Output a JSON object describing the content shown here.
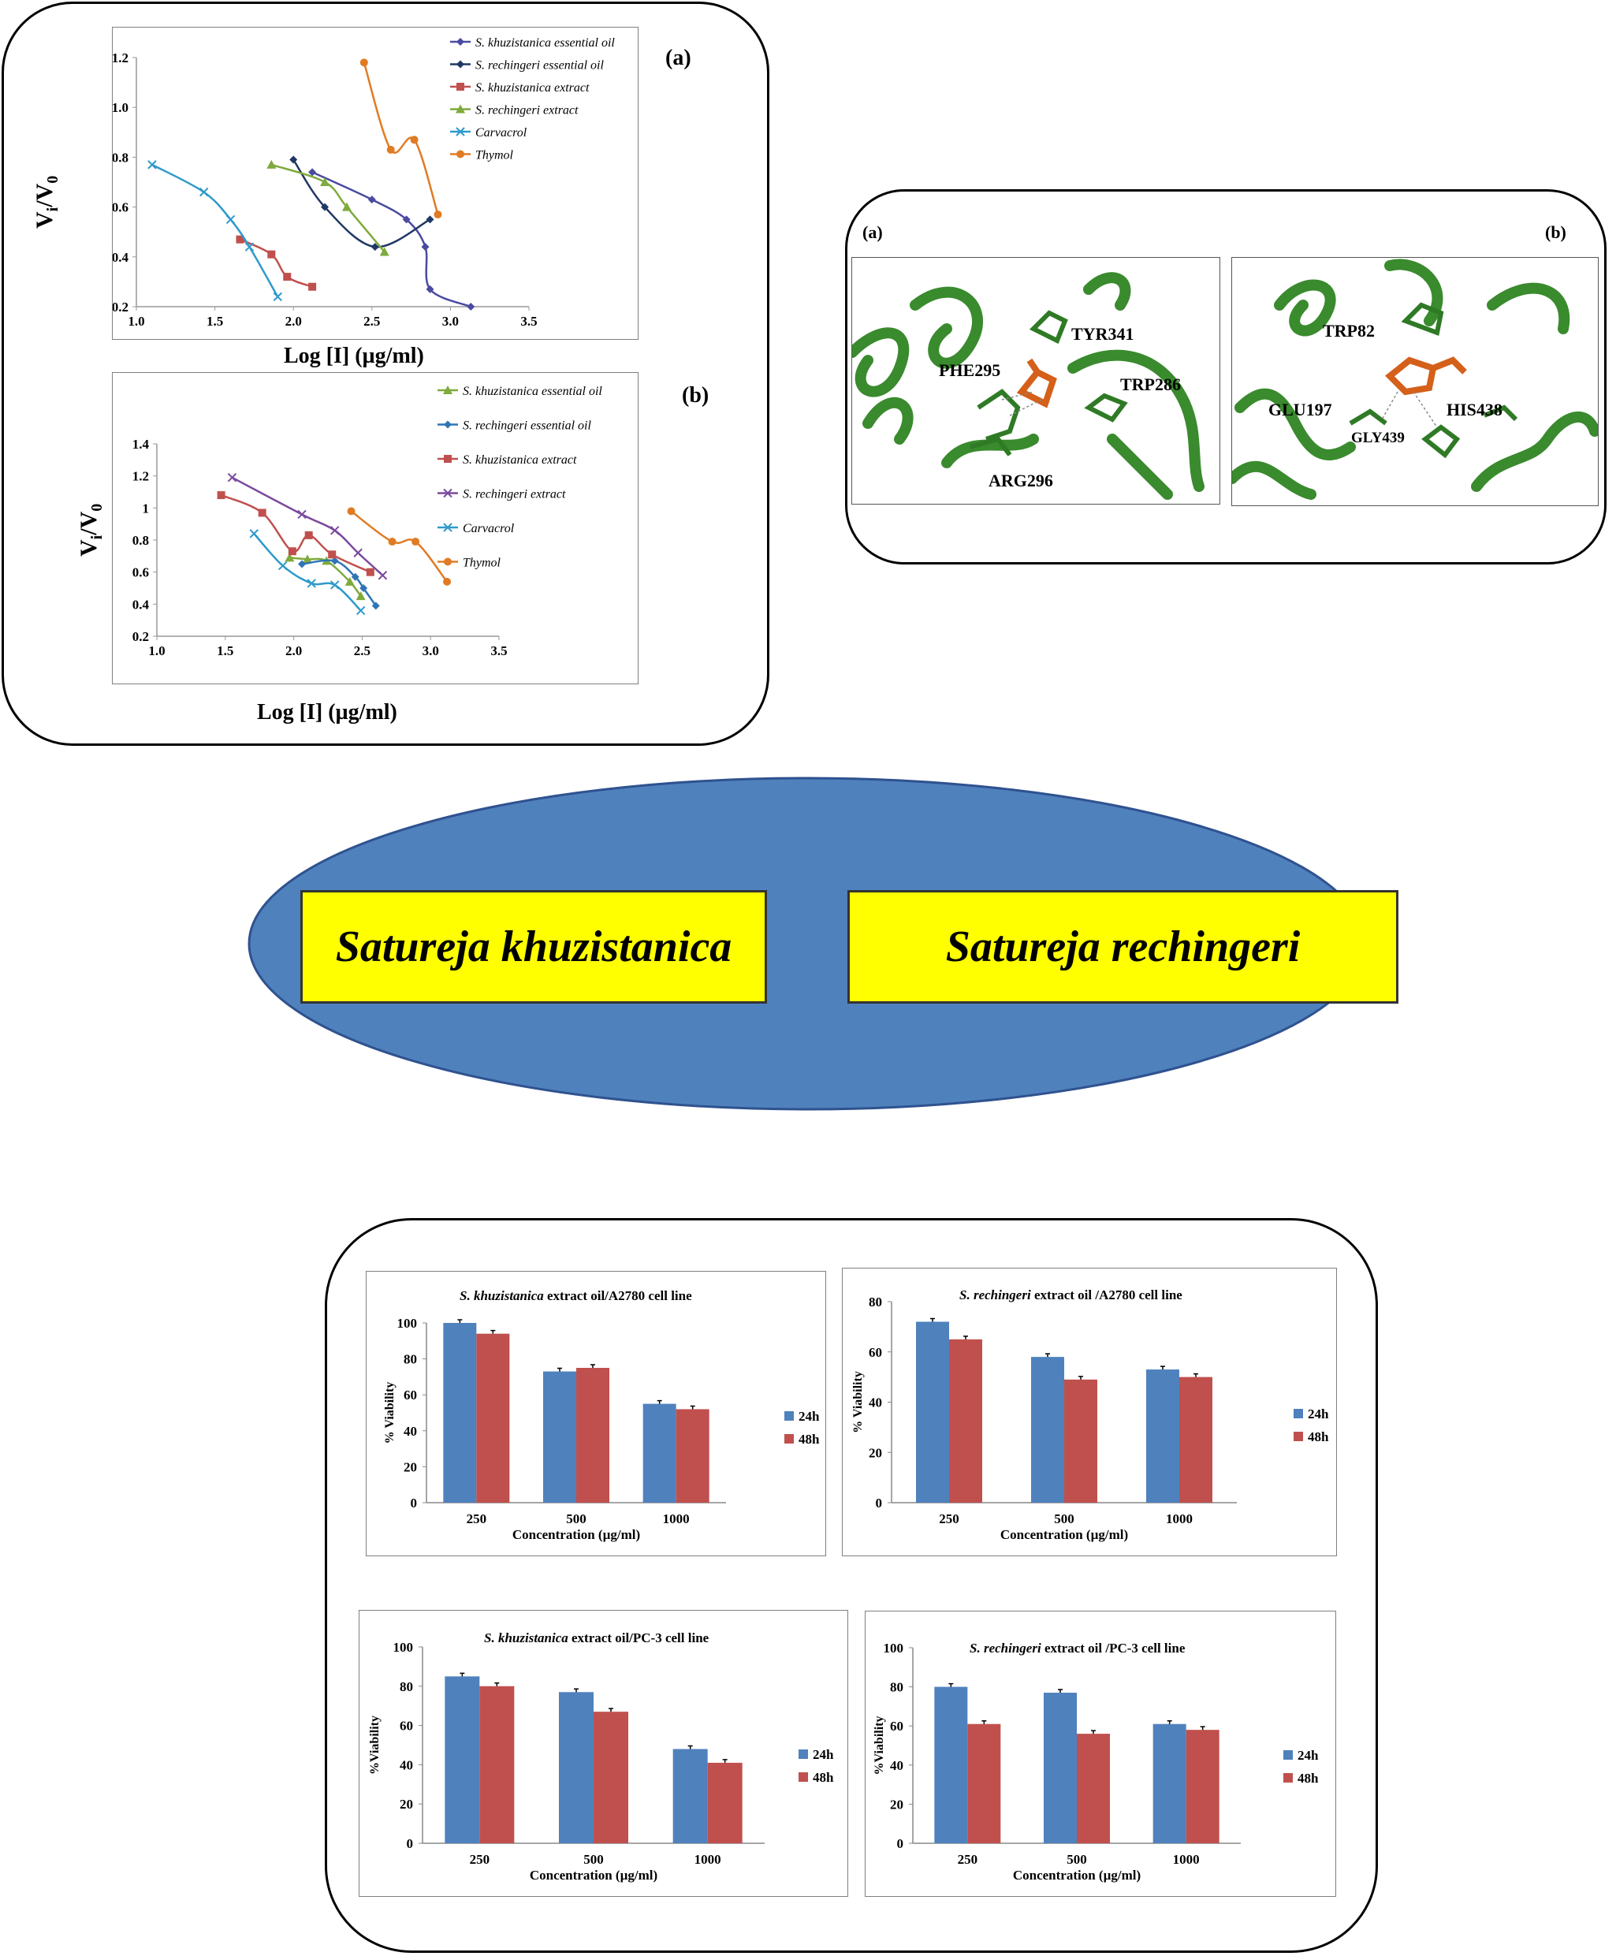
{
  "kinetics": {
    "a": {
      "panel_label": "(a)",
      "xlabel": "Log [I] (µg/ml)",
      "ylabel_main": "V",
      "ylabel_sub1": "i",
      "ylabel_mid": "/V",
      "ylabel_sub2": "0",
      "xticks": [
        "1.0",
        "1.5",
        "2.0",
        "2.5",
        "3.0",
        "3.5"
      ],
      "yticks": [
        "0.2",
        "0.4",
        "0.6",
        "0.8",
        "1.0",
        "1.2"
      ],
      "legend": [
        "S. khuzistanica essential oil",
        "S. rechingeri essential oil",
        "S. khuzistanica  extract",
        "S. rechingeri extract",
        "Carvacrol",
        "Thymol"
      ]
    },
    "b": {
      "panel_label": "(b)",
      "xlabel": "Log [I] (µg/ml)",
      "ylabel_main": "V",
      "ylabel_sub1": "i",
      "ylabel_mid": "/V",
      "ylabel_sub2": "0",
      "xticks": [
        "1.0",
        "1.5",
        "2.0",
        "2.5",
        "3.0",
        "3.5"
      ],
      "yticks": [
        "0.2",
        "0.4",
        "0.6",
        "0.8",
        "1",
        "1.2",
        "1.4"
      ],
      "legend": [
        "S. khuzistanica essential oil",
        "S. rechingeri essential oil",
        "S. khuzistanica extract",
        "S. rechingeri extract",
        "Carvacrol",
        "Thymol"
      ]
    }
  },
  "docking": {
    "a_label": "(a)",
    "b_label": "(b)",
    "a_residues": [
      "TYR341",
      "PHE295",
      "TRP286",
      "ARG296"
    ],
    "b_residues": [
      "TRP82",
      "GLU197",
      "HIS438",
      "GLY439"
    ],
    "colors": {
      "ribbon": "#3a8a2e",
      "ligand": "#d4601a"
    }
  },
  "center": {
    "left_label": "Satureja khuzistanica",
    "right_label": "Satureja rechingeri",
    "ellipse_color": "#4f81bd",
    "box_color": "#ffff00"
  },
  "viability": {
    "legend": [
      "24h",
      "48h"
    ],
    "xlabel": "Concentration (µg/ml)",
    "colors": {
      "24h": "#4f81bd",
      "48h": "#c0504d"
    }
  },
  "chart_data": [
    {
      "type": "line",
      "title": "(a)",
      "xlabel": "Log [I] (µg/ml)",
      "ylabel": "Vi/V0",
      "xlim": [
        1.0,
        3.5
      ],
      "ylim": [
        0.2,
        1.2
      ],
      "series": [
        {
          "name": "S. khuzistanica essential oil",
          "color": "#4a4aa0",
          "marker": "diamond",
          "x": [
            2.12,
            2.5,
            2.72,
            2.84,
            2.87,
            3.13
          ],
          "y": [
            0.74,
            0.63,
            0.55,
            0.44,
            0.27,
            0.2
          ]
        },
        {
          "name": "S. rechingeri essential oil",
          "color": "#1f3864",
          "marker": "diamond",
          "x": [
            2.0,
            2.2,
            2.52,
            2.87
          ],
          "y": [
            0.79,
            0.6,
            0.44,
            0.55
          ]
        },
        {
          "name": "S. khuzistanica  extract",
          "color": "#c0504d",
          "marker": "square",
          "x": [
            1.66,
            1.86,
            1.96,
            2.12
          ],
          "y": [
            0.47,
            0.41,
            0.32,
            0.28
          ]
        },
        {
          "name": "S. rechingeri extract",
          "color": "#7faa3c",
          "marker": "triangle",
          "x": [
            1.86,
            2.2,
            2.34,
            2.58
          ],
          "y": [
            0.77,
            0.7,
            0.6,
            0.42
          ]
        },
        {
          "name": "Carvacrol",
          "color": "#2e9acb",
          "marker": "cross",
          "x": [
            1.1,
            1.43,
            1.6,
            1.72,
            1.9
          ],
          "y": [
            0.77,
            0.66,
            0.55,
            0.44,
            0.24
          ]
        },
        {
          "name": "Thymol",
          "color": "#e07b24",
          "marker": "circle",
          "x": [
            2.45,
            2.62,
            2.77,
            2.92
          ],
          "y": [
            1.18,
            0.83,
            0.87,
            0.57
          ]
        }
      ]
    },
    {
      "type": "line",
      "title": "(b)",
      "xlabel": "Log [I] (µg/ml)",
      "ylabel": "Vi/V0",
      "xlim": [
        1.0,
        3.5
      ],
      "ylim": [
        0.2,
        1.4
      ],
      "series": [
        {
          "name": "S. khuzistanica essential oil",
          "color": "#7faa3c",
          "marker": "triangle",
          "x": [
            1.97,
            2.1,
            2.24,
            2.41,
            2.49
          ],
          "y": [
            0.69,
            0.68,
            0.67,
            0.54,
            0.45
          ]
        },
        {
          "name": "S. rechingeri essential oil",
          "color": "#2e75b6",
          "marker": "diamond",
          "x": [
            2.06,
            2.3,
            2.45,
            2.51,
            2.6
          ],
          "y": [
            0.65,
            0.67,
            0.57,
            0.5,
            0.39
          ]
        },
        {
          "name": "S. khuzistanica extract",
          "color": "#c0504d",
          "marker": "square",
          "x": [
            1.47,
            1.77,
            1.99,
            2.11,
            2.28,
            2.56
          ],
          "y": [
            1.08,
            0.97,
            0.73,
            0.83,
            0.71,
            0.6
          ]
        },
        {
          "name": "S. rechingeri extract",
          "color": "#7a4a9e",
          "marker": "cross",
          "x": [
            1.55,
            2.06,
            2.3,
            2.47,
            2.65
          ],
          "y": [
            1.19,
            0.96,
            0.86,
            0.72,
            0.58
          ]
        },
        {
          "name": "Carvacrol",
          "color": "#2e9acb",
          "marker": "cross",
          "x": [
            1.71,
            1.92,
            2.13,
            2.3,
            2.49
          ],
          "y": [
            0.84,
            0.64,
            0.53,
            0.52,
            0.36
          ]
        },
        {
          "name": "Thymol",
          "color": "#e07b24",
          "marker": "circle",
          "x": [
            2.42,
            2.72,
            2.89,
            3.12
          ],
          "y": [
            0.98,
            0.79,
            0.79,
            0.54
          ]
        }
      ]
    },
    {
      "type": "bar",
      "title_italic": "S. khuzistanica",
      "title_rest": " extract oil/A2780 cell line",
      "ylabel": "% Viability",
      "xlabel": "Concentration (µg/ml)",
      "categories": [
        "250",
        "500",
        "1000"
      ],
      "ylim": [
        0,
        100
      ],
      "yticks": [
        "0",
        "20",
        "40",
        "60",
        "80",
        "100"
      ],
      "series": [
        {
          "name": "24h",
          "values": [
            100,
            73,
            55
          ]
        },
        {
          "name": "48h",
          "values": [
            94,
            75,
            52
          ]
        }
      ]
    },
    {
      "type": "bar",
      "title_italic": "S. rechingeri",
      "title_rest": " extract oil /A2780 cell line",
      "ylabel": "% Viability",
      "xlabel": "Concentration (µg/ml)",
      "categories": [
        "250",
        "500",
        "1000"
      ],
      "ylim": [
        0,
        80
      ],
      "yticks": [
        "0",
        "20",
        "40",
        "60",
        "80"
      ],
      "series": [
        {
          "name": "24h",
          "values": [
            72,
            58,
            53
          ]
        },
        {
          "name": "48h",
          "values": [
            65,
            49,
            50
          ]
        }
      ]
    },
    {
      "type": "bar",
      "title_italic": "S. khuzistanica",
      "title_rest": " extract oil/PC-3 cell line",
      "ylabel": "%Viability",
      "xlabel": "Concentration (µg/ml)",
      "categories": [
        "250",
        "500",
        "1000"
      ],
      "ylim": [
        0,
        100
      ],
      "yticks": [
        "0",
        "20",
        "40",
        "60",
        "80",
        "100"
      ],
      "series": [
        {
          "name": "24h",
          "values": [
            85,
            77,
            48
          ]
        },
        {
          "name": "48h",
          "values": [
            80,
            67,
            41
          ]
        }
      ]
    },
    {
      "type": "bar",
      "title_italic": "S. rechingeri",
      "title_rest": " extract oil /PC-3 cell line",
      "ylabel": "%Viability",
      "xlabel": "Concentration (µg/ml)",
      "categories": [
        "250",
        "500",
        "1000"
      ],
      "ylim": [
        0,
        100
      ],
      "yticks": [
        "0",
        "20",
        "40",
        "60",
        "80",
        "100"
      ],
      "series": [
        {
          "name": "24h",
          "values": [
            80,
            77,
            61
          ]
        },
        {
          "name": "48h",
          "values": [
            61,
            56,
            58
          ]
        }
      ]
    }
  ]
}
